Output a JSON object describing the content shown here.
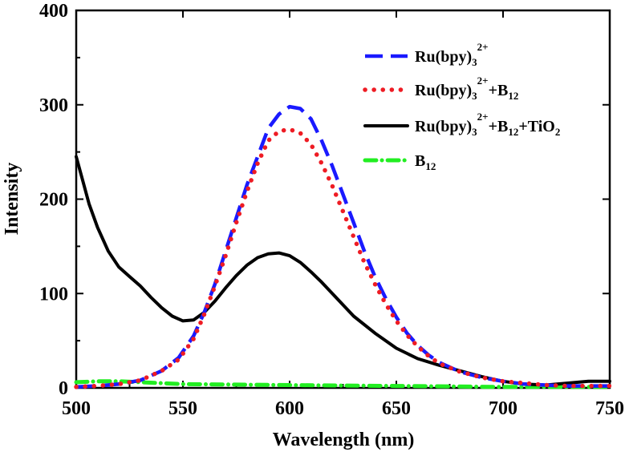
{
  "chart_data": {
    "type": "line",
    "xlabel": "Wavelength (nm)",
    "ylabel": "Intensity",
    "xlim": [
      500,
      750
    ],
    "ylim": [
      0,
      400
    ],
    "xticks": [
      500,
      550,
      600,
      650,
      700,
      750
    ],
    "yticks": [
      0,
      100,
      200,
      300,
      400
    ],
    "legend_position": "top-right",
    "series": [
      {
        "name": "Ru(bpy)3 2+",
        "legend": {
          "base": "Ru(bpy)",
          "s1": "3",
          "p1": "2+",
          "tail": "",
          "s2": "",
          "end": ""
        },
        "color": "#1a1aff",
        "style": "dash",
        "x": [
          500,
          510,
          520,
          530,
          540,
          548,
          555,
          560,
          565,
          570,
          575,
          580,
          585,
          590,
          595,
          600,
          605,
          610,
          615,
          620,
          625,
          630,
          635,
          640,
          645,
          650,
          655,
          660,
          665,
          670,
          680,
          690,
          700,
          710,
          720,
          730,
          740,
          750
        ],
        "y": [
          1,
          2,
          4,
          8,
          18,
          32,
          55,
          80,
          110,
          145,
          180,
          215,
          245,
          275,
          290,
          298,
          296,
          285,
          262,
          235,
          205,
          175,
          145,
          118,
          95,
          75,
          58,
          45,
          35,
          27,
          17,
          11,
          7,
          4,
          3,
          2,
          2,
          2
        ]
      },
      {
        "name": "Ru(bpy)3 2+ + B12",
        "legend": {
          "base": "Ru(bpy)",
          "s1": "3",
          "p1": "2+",
          "tail": "+B",
          "s2": "12",
          "end": ""
        },
        "color": "#ee1c24",
        "style": "dot",
        "x": [
          500,
          510,
          520,
          530,
          540,
          548,
          555,
          560,
          565,
          570,
          575,
          580,
          585,
          590,
          595,
          600,
          605,
          610,
          615,
          620,
          625,
          630,
          635,
          640,
          645,
          650,
          655,
          660,
          665,
          670,
          680,
          690,
          700,
          710,
          720,
          730,
          740,
          750
        ],
        "y": [
          1,
          2,
          4,
          8,
          18,
          30,
          52,
          78,
          108,
          140,
          175,
          208,
          238,
          262,
          272,
          274,
          270,
          258,
          238,
          214,
          187,
          160,
          133,
          110,
          89,
          71,
          56,
          44,
          34,
          26,
          17,
          11,
          7,
          5,
          3,
          2,
          2,
          2
        ]
      },
      {
        "name": "Ru(bpy)3 2+ + B12 + TiO2",
        "legend": {
          "base": "Ru(bpy)",
          "s1": "3",
          "p1": "2+",
          "tail": "+B",
          "s2": "12",
          "end": "+TiO",
          "s3": "2"
        },
        "color": "#000000",
        "style": "solid",
        "x": [
          500,
          503,
          506,
          510,
          515,
          520,
          525,
          530,
          535,
          540,
          545,
          550,
          555,
          560,
          565,
          570,
          575,
          580,
          585,
          590,
          595,
          600,
          605,
          610,
          615,
          620,
          625,
          630,
          640,
          650,
          660,
          670,
          680,
          690,
          700,
          710,
          720,
          730,
          740,
          750
        ],
        "y": [
          245,
          220,
          195,
          170,
          145,
          128,
          118,
          108,
          96,
          85,
          76,
          71,
          72,
          80,
          92,
          106,
          119,
          130,
          138,
          142,
          143,
          140,
          133,
          123,
          112,
          100,
          88,
          76,
          58,
          42,
          31,
          24,
          18,
          12,
          7,
          4,
          3,
          5,
          7,
          7
        ]
      },
      {
        "name": "B12",
        "legend": {
          "base": "B",
          "s1": "12",
          "p1": "",
          "tail": "",
          "s2": "",
          "end": ""
        },
        "color": "#22ee22",
        "style": "dashdot",
        "x": [
          500,
          510,
          520,
          530,
          540,
          550,
          575,
          600,
          625,
          650,
          675,
          700,
          725,
          750
        ],
        "y": [
          6,
          7,
          7,
          6,
          5,
          4,
          3.5,
          3,
          2.5,
          2,
          1.5,
          1,
          1,
          1
        ]
      }
    ]
  }
}
